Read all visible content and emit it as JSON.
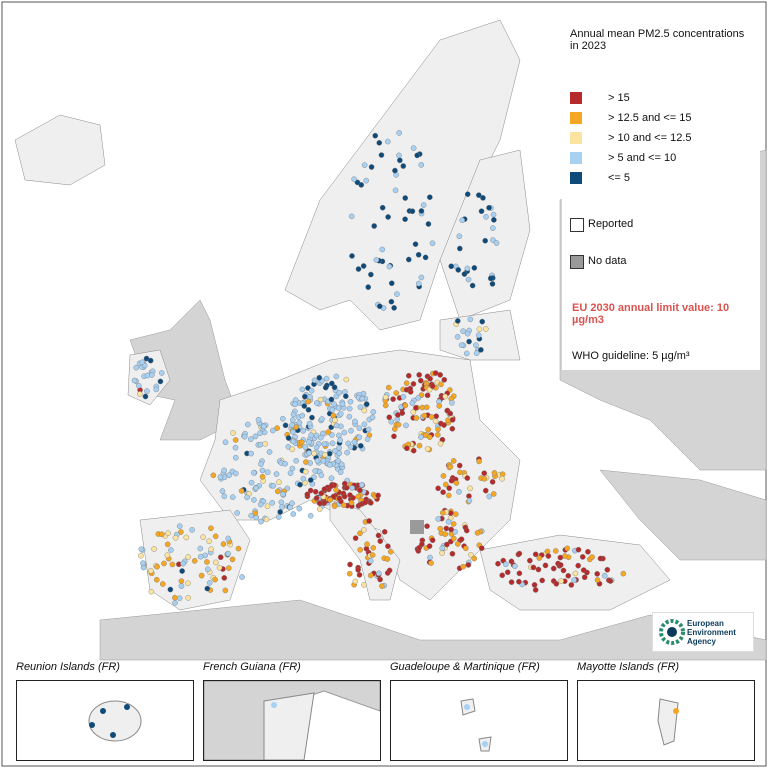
{
  "title": "Annual mean PM2.5 concentrations in 2023",
  "legend": [
    {
      "label": "> 15",
      "color": "#b52b2b"
    },
    {
      "label": "> 12.5 and <= 15",
      "color": "#f5a623"
    },
    {
      "label": "> 10 and <= 12.5",
      "color": "#fbe3a0"
    },
    {
      "label": "> 5 and <= 10",
      "color": "#a7d0f2"
    },
    {
      "label": "<= 5",
      "color": "#0e4a7a"
    }
  ],
  "reported": "Reported",
  "no_data": "No data",
  "eu_limit": "EU 2030 annual limit value: 10 µg/m3",
  "who_guideline": "WHO guideline: 5 µg/m³",
  "logo": [
    "European",
    "Environment",
    "Agency"
  ],
  "insets": [
    "Reunion Islands (FR)",
    "French Guiana (FR)",
    "Guadeloupe & Martinique (FR)",
    "Mayotte Islands (FR)"
  ]
}
